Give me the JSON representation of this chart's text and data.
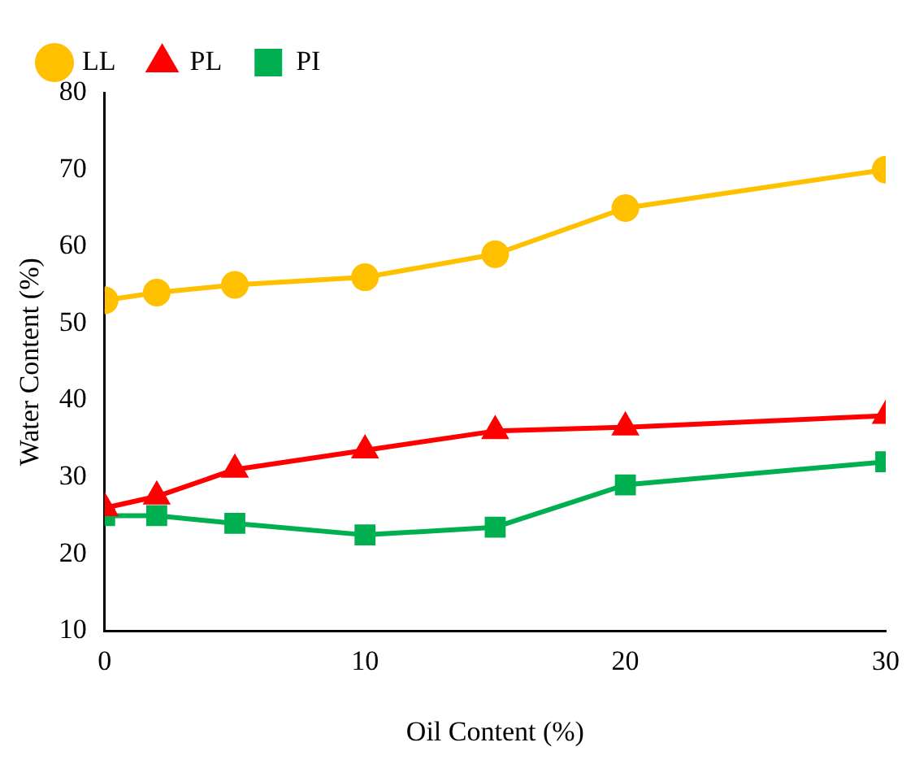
{
  "chart_data": {
    "type": "line",
    "xlabel": "Oil Content (%)",
    "ylabel": "Water Content (%)",
    "x": [
      0,
      2,
      5,
      10,
      15,
      20,
      30
    ],
    "series": [
      {
        "name": "LL",
        "color": "#ffc000",
        "marker": "circle",
        "values": [
          53,
          54,
          55,
          56,
          59,
          65,
          70
        ]
      },
      {
        "name": "PL",
        "color": "#ff0000",
        "marker": "triangle",
        "values": [
          26,
          27.5,
          31,
          33.5,
          36,
          36.5,
          38
        ]
      },
      {
        "name": "PI",
        "color": "#00b050",
        "marker": "square",
        "values": [
          25,
          25,
          24,
          22.5,
          23.5,
          29,
          32
        ]
      }
    ],
    "xlim": [
      0,
      30
    ],
    "xticks": [
      0,
      10,
      20,
      30
    ],
    "ylim": [
      10,
      80
    ],
    "yticks": [
      10,
      20,
      30,
      40,
      50,
      60,
      70,
      80
    ],
    "grid": false,
    "legend": "top left"
  }
}
